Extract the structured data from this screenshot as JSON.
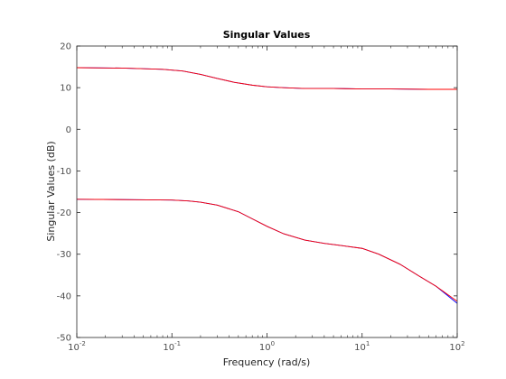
{
  "chart_data": {
    "type": "line",
    "title": "Singular Values",
    "xlabel": "Frequency (rad/s)",
    "ylabel": "Singular Values (dB)",
    "xscale": "log",
    "xlim": [
      0.01,
      100
    ],
    "ylim": [
      -50,
      20
    ],
    "grid": false,
    "legend": "none",
    "x_ticks": [
      {
        "base": "10",
        "exp": "-2",
        "value": 0.01
      },
      {
        "base": "10",
        "exp": "-1",
        "value": 0.1
      },
      {
        "base": "10",
        "exp": "0",
        "value": 1
      },
      {
        "base": "10",
        "exp": "1",
        "value": 10
      },
      {
        "base": "10",
        "exp": "2",
        "value": 100
      }
    ],
    "y_ticks": [
      {
        "label": "20",
        "value": 20
      },
      {
        "label": "10",
        "value": 10
      },
      {
        "label": "0",
        "value": 0
      },
      {
        "label": "-10",
        "value": -10
      },
      {
        "label": "-20",
        "value": -20
      },
      {
        "label": "-30",
        "value": -30
      },
      {
        "label": "-40",
        "value": -40
      },
      {
        "label": "-50",
        "value": -50
      }
    ],
    "series": [
      {
        "color": "#0000ff",
        "x": [
          0.01,
          0.03,
          0.08,
          0.13,
          0.2,
          0.3,
          0.45,
          0.7,
          1,
          1.5,
          2.5,
          5,
          10,
          20,
          50,
          100
        ],
        "values": [
          14.8,
          14.7,
          14.4,
          14.0,
          13.2,
          12.2,
          11.3,
          10.6,
          10.2,
          10.0,
          9.8,
          9.8,
          9.7,
          9.7,
          9.6,
          9.6
        ]
      },
      {
        "color": "#ff0000",
        "x": [
          0.01,
          0.03,
          0.08,
          0.13,
          0.2,
          0.3,
          0.45,
          0.7,
          1,
          1.5,
          2.5,
          5,
          10,
          20,
          50,
          100
        ],
        "values": [
          14.8,
          14.7,
          14.4,
          14.0,
          13.2,
          12.2,
          11.3,
          10.6,
          10.2,
          10.0,
          9.8,
          9.8,
          9.7,
          9.7,
          9.6,
          9.6
        ]
      },
      {
        "color": "#0000ff",
        "x": [
          0.01,
          0.04,
          0.1,
          0.15,
          0.2,
          0.3,
          0.5,
          0.7,
          1,
          1.5,
          2.5,
          4,
          6,
          10,
          15,
          25,
          40,
          60,
          100
        ],
        "values": [
          -16.8,
          -16.9,
          -17.0,
          -17.2,
          -17.5,
          -18.2,
          -19.8,
          -21.5,
          -23.3,
          -25.1,
          -26.6,
          -27.4,
          -27.9,
          -28.6,
          -30.0,
          -32.4,
          -35.3,
          -37.7,
          -41.8
        ]
      },
      {
        "color": "#ff0000",
        "x": [
          0.01,
          0.04,
          0.1,
          0.15,
          0.2,
          0.3,
          0.5,
          0.7,
          1,
          1.5,
          2.5,
          4,
          6,
          10,
          15,
          25,
          40,
          60,
          100
        ],
        "values": [
          -16.8,
          -16.9,
          -17.0,
          -17.2,
          -17.5,
          -18.2,
          -19.8,
          -21.5,
          -23.3,
          -25.1,
          -26.6,
          -27.4,
          -27.9,
          -28.6,
          -30.0,
          -32.4,
          -35.3,
          -37.7,
          -41.3
        ]
      }
    ]
  }
}
